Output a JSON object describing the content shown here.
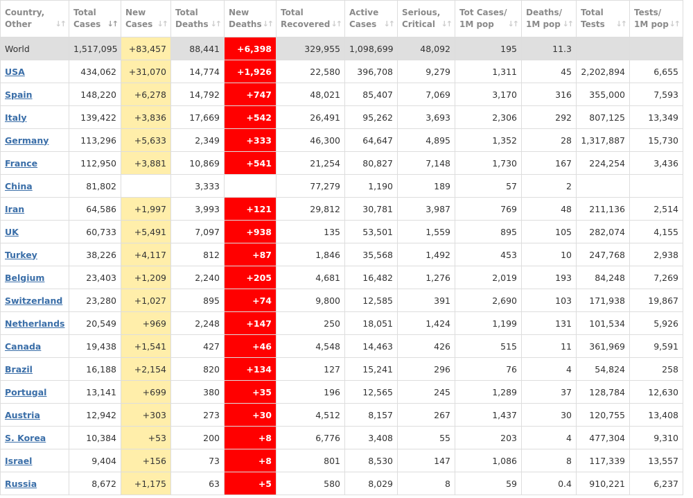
{
  "table": {
    "header": [
      [
        "Country,",
        "Other"
      ],
      [
        "Total",
        "Cases"
      ],
      [
        "New",
        "Cases"
      ],
      [
        "Total",
        "Deaths"
      ],
      [
        "New",
        "Deaths"
      ],
      [
        "Total",
        "Recovered"
      ],
      [
        "Active",
        "Cases"
      ],
      [
        "Serious,",
        "Critical"
      ],
      [
        "Tot Cases/",
        "1M pop"
      ],
      [
        "Deaths/",
        "1M pop"
      ],
      [
        "Total",
        "Tests"
      ],
      [
        "Tests/",
        "1M pop"
      ]
    ],
    "rows": [
      [
        "World",
        "1,517,095",
        "+83,457",
        "88,441",
        "+6,398",
        "329,955",
        "1,098,699",
        "48,092",
        "195",
        "11.3",
        null,
        null
      ],
      [
        "USA",
        "434,062",
        "+31,070",
        "14,774",
        "+1,926",
        "22,580",
        "396,708",
        "9,279",
        "1,311",
        "45",
        "2,202,894",
        "6,655"
      ],
      [
        "Spain",
        "148,220",
        "+6,278",
        "14,792",
        "+747",
        "48,021",
        "85,407",
        "7,069",
        "3,170",
        "316",
        "355,000",
        "7,593"
      ],
      [
        "Italy",
        "139,422",
        "+3,836",
        "17,669",
        "+542",
        "26,491",
        "95,262",
        "3,693",
        "2,306",
        "292",
        "807,125",
        "13,349"
      ],
      [
        "Germany",
        "113,296",
        "+5,633",
        "2,349",
        "+333",
        "46,300",
        "64,647",
        "4,895",
        "1,352",
        "28",
        "1,317,887",
        "15,730"
      ],
      [
        "France",
        "112,950",
        "+3,881",
        "10,869",
        "+541",
        "21,254",
        "80,827",
        "7,148",
        "1,730",
        "167",
        "224,254",
        "3,436"
      ],
      [
        "China",
        "81,802",
        null,
        "3,333",
        null,
        "77,279",
        "1,190",
        "189",
        "57",
        "2",
        null,
        null
      ],
      [
        "Iran",
        "64,586",
        "+1,997",
        "3,993",
        "+121",
        "29,812",
        "30,781",
        "3,987",
        "769",
        "48",
        "211,136",
        "2,514"
      ],
      [
        "UK",
        "60,733",
        "+5,491",
        "7,097",
        "+938",
        "135",
        "53,501",
        "1,559",
        "895",
        "105",
        "282,074",
        "4,155"
      ],
      [
        "Turkey",
        "38,226",
        "+4,117",
        "812",
        "+87",
        "1,846",
        "35,568",
        "1,492",
        "453",
        "10",
        "247,768",
        "2,938"
      ],
      [
        "Belgium",
        "23,403",
        "+1,209",
        "2,240",
        "+205",
        "4,681",
        "16,482",
        "1,276",
        "2,019",
        "193",
        "84,248",
        "7,269"
      ],
      [
        "Switzerland",
        "23,280",
        "+1,027",
        "895",
        "+74",
        "9,800",
        "12,585",
        "391",
        "2,690",
        "103",
        "171,938",
        "19,867"
      ],
      [
        "Netherlands",
        "20,549",
        "+969",
        "2,248",
        "+147",
        "250",
        "18,051",
        "1,424",
        "1,199",
        "131",
        "101,534",
        "5,926"
      ],
      [
        "Canada",
        "19,438",
        "+1,541",
        "427",
        "+46",
        "4,548",
        "14,463",
        "426",
        "515",
        "11",
        "361,969",
        "9,591"
      ],
      [
        "Brazil",
        "16,188",
        "+2,154",
        "820",
        "+134",
        "127",
        "15,241",
        "296",
        "76",
        "4",
        "54,824",
        "258"
      ],
      [
        "Portugal",
        "13,141",
        "+699",
        "380",
        "+35",
        "196",
        "12,565",
        "245",
        "1,289",
        "37",
        "128,784",
        "12,630"
      ],
      [
        "Austria",
        "12,942",
        "+303",
        "273",
        "+30",
        "4,512",
        "8,157",
        "267",
        "1,437",
        "30",
        "120,755",
        "13,408"
      ],
      [
        "S. Korea",
        "10,384",
        "+53",
        "200",
        "+8",
        "6,776",
        "3,408",
        "55",
        "203",
        "4",
        "477,304",
        "9,310"
      ],
      [
        "Israel",
        "9,404",
        "+156",
        "73",
        "+8",
        "801",
        "8,530",
        "147",
        "1,086",
        "8",
        "117,339",
        "13,557"
      ],
      [
        "Russia",
        "8,672",
        "+1,175",
        "63",
        "+5",
        "580",
        "8,029",
        "8",
        "59",
        "0.4",
        "910,221",
        "6,237"
      ]
    ]
  }
}
